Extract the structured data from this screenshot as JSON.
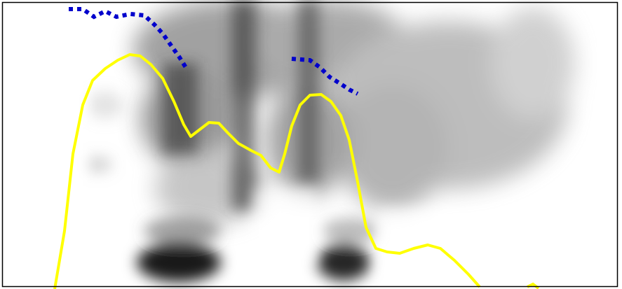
{
  "figure": {
    "kind": "spectrogram with overlaid contours",
    "background": "#ffffff",
    "border_color": "#000000",
    "intensity_color": "#000000",
    "contours": [
      {
        "id": "pitch-contour",
        "color": "#ffff00",
        "style": "solid"
      },
      {
        "id": "intensity-contour-segment-1",
        "color": "#0000cc",
        "style": "dotted"
      },
      {
        "id": "intensity-contour-segment-2",
        "color": "#0000cc",
        "style": "dotted"
      }
    ]
  }
}
